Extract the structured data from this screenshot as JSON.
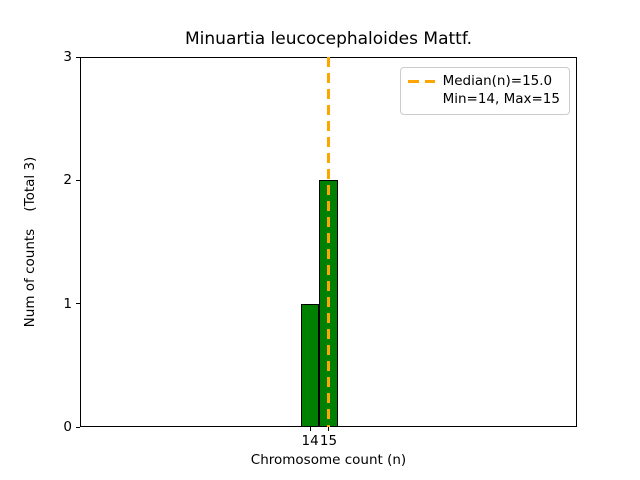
{
  "chart_data": {
    "type": "bar",
    "title": "Minuartia leucocephaloides Mattf.",
    "xlabel": "Chromosome count (n)",
    "ylabel": "Num of counts    (Total 3)",
    "categories": [
      14,
      15
    ],
    "values": [
      1,
      2
    ],
    "bin_width": 1,
    "total": 3,
    "median": 15.0,
    "min": 14,
    "max": 15,
    "xticks": [
      14,
      15
    ],
    "yticks": [
      0,
      1,
      2,
      3
    ],
    "xlim": [
      1.5,
      28.5
    ],
    "ylim": [
      0,
      3
    ],
    "grid": false,
    "legend_position": "upper right",
    "legend_entries": [
      "Median(n)=15.0",
      "Min=14, Max=15"
    ],
    "colors": {
      "bar_fill": "#008000",
      "bar_edge": "#000000",
      "median_line": "#FFA500",
      "legend_border": "#cccccc",
      "axis": "#000000",
      "background": "#ffffff"
    }
  }
}
